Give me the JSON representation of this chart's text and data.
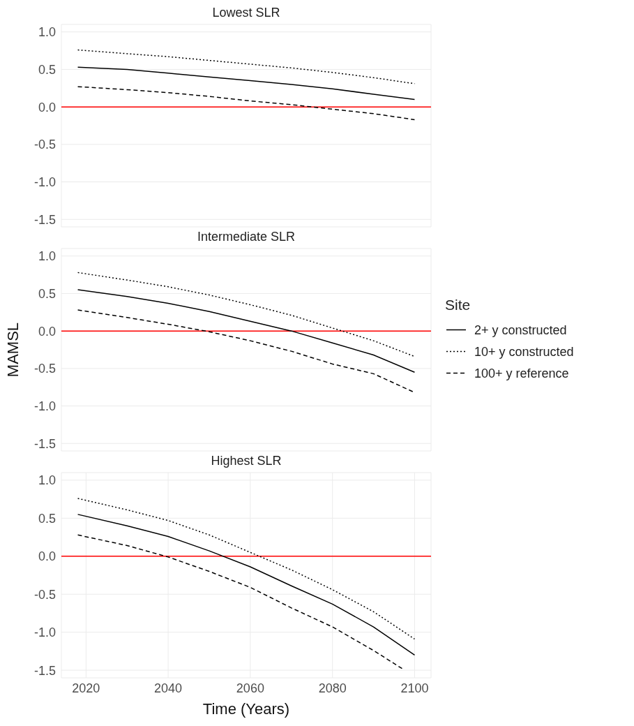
{
  "chart_data": [
    {
      "type": "line",
      "title": "Lowest SLR",
      "tick_labels": "y",
      "grid": true,
      "legend": false,
      "xlim": [
        2014,
        2104
      ],
      "xticks": [
        2020,
        2040,
        2060,
        2080,
        2100
      ],
      "ylim": [
        -1.6,
        1.1
      ],
      "yticks": [
        -1.5,
        {
          "value": -1,
          "label": "-1.0"
        },
        -0.5,
        {
          "value": 0,
          "label": "0.0"
        },
        0.5,
        {
          "value": 1,
          "label": "1.0"
        }
      ],
      "ref_lines": [
        {
          "axis": "y",
          "value": 0,
          "color": "#ff0000"
        }
      ],
      "x": [
        2018,
        2030,
        2040,
        2050,
        2060,
        2070,
        2080,
        2090,
        2100
      ],
      "series": [
        {
          "color": "#000000",
          "line_style": "solid",
          "values": [
            0.53,
            0.5,
            0.45,
            0.4,
            0.35,
            0.3,
            0.24,
            0.17,
            0.1
          ]
        },
        {
          "color": "#000000",
          "line_style": "dotted",
          "values": [
            0.76,
            0.71,
            0.67,
            0.62,
            0.57,
            0.52,
            0.46,
            0.39,
            0.31
          ]
        },
        {
          "color": "#000000",
          "line_style": "dashed",
          "values": [
            0.27,
            0.23,
            0.19,
            0.14,
            0.08,
            0.03,
            -0.03,
            -0.09,
            -0.17
          ]
        }
      ]
    },
    {
      "type": "line",
      "title": "Intermediate SLR",
      "ylabel": "MAMSL",
      "legend_title": "Site",
      "legend": "right",
      "tick_labels": "y",
      "grid": true,
      "xlim": [
        2014,
        2104
      ],
      "xticks": [
        2020,
        2040,
        2060,
        2080,
        2100
      ],
      "ylim": [
        -1.6,
        1.1
      ],
      "yticks": [
        -1.5,
        {
          "value": -1,
          "label": "-1.0"
        },
        -0.5,
        {
          "value": 0,
          "label": "0.0"
        },
        0.5,
        {
          "value": 1,
          "label": "1.0"
        }
      ],
      "ref_lines": [
        {
          "axis": "y",
          "value": 0,
          "color": "#ff0000"
        }
      ],
      "x": [
        2018,
        2030,
        2040,
        2050,
        2060,
        2070,
        2080,
        2090,
        2100
      ],
      "series": [
        {
          "name": "2+ y constructed",
          "color": "#000000",
          "line_style": "solid",
          "values": [
            0.55,
            0.46,
            0.37,
            0.26,
            0.13,
            0.0,
            -0.16,
            -0.32,
            -0.55
          ]
        },
        {
          "name": "10+ y constructed",
          "color": "#000000",
          "line_style": "dotted",
          "values": [
            0.78,
            0.68,
            0.59,
            0.48,
            0.35,
            0.21,
            0.04,
            -0.13,
            -0.34
          ]
        },
        {
          "name": "100+ y reference",
          "color": "#000000",
          "line_style": "dashed",
          "values": [
            0.28,
            0.18,
            0.09,
            -0.01,
            -0.13,
            -0.27,
            -0.44,
            -0.57,
            -0.82
          ]
        }
      ]
    },
    {
      "type": "line",
      "title": "Highest SLR",
      "xlabel": "Time (Years)",
      "grid": true,
      "legend": false,
      "xlim": [
        2014,
        2104
      ],
      "xticks": [
        2020,
        2040,
        2060,
        2080,
        2100
      ],
      "ylim": [
        -1.6,
        1.1
      ],
      "yticks": [
        -1.5,
        {
          "value": -1,
          "label": "-1.0"
        },
        -0.5,
        {
          "value": 0,
          "label": "0.0"
        },
        0.5,
        {
          "value": 1,
          "label": "1.0"
        }
      ],
      "ref_lines": [
        {
          "axis": "y",
          "value": 0,
          "color": "#ff0000"
        }
      ],
      "x": [
        2018,
        2030,
        2040,
        2050,
        2060,
        2070,
        2080,
        2090,
        2100
      ],
      "series": [
        {
          "color": "#000000",
          "line_style": "solid",
          "values": [
            0.55,
            0.4,
            0.26,
            0.07,
            -0.14,
            -0.39,
            -0.63,
            -0.93,
            -1.3
          ]
        },
        {
          "color": "#000000",
          "line_style": "dotted",
          "values": [
            0.76,
            0.61,
            0.47,
            0.28,
            0.05,
            -0.18,
            -0.44,
            -0.73,
            -1.09
          ]
        },
        {
          "color": "#000000",
          "line_style": "dashed",
          "x": [
            2018,
            2030,
            2040,
            2050,
            2060,
            2070,
            2080,
            2090,
            2097
          ],
          "values": [
            0.28,
            0.14,
            -0.01,
            -0.2,
            -0.41,
            -0.68,
            -0.93,
            -1.24,
            -1.48
          ]
        }
      ]
    }
  ]
}
